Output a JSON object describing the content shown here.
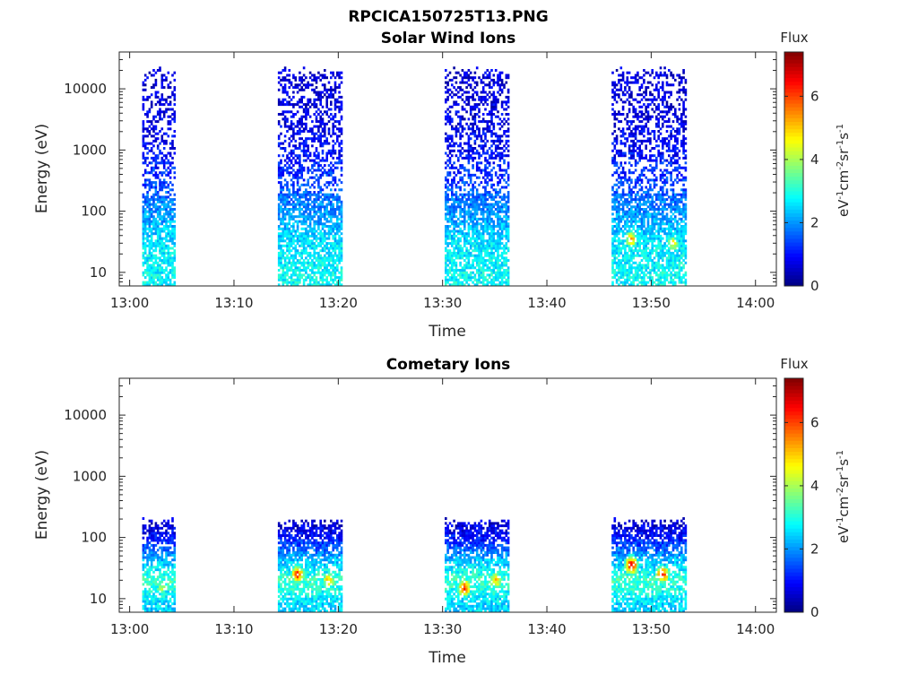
{
  "figure": {
    "title": "RPCICA150725T13.PNG"
  },
  "colormap": "jet",
  "chart_data": [
    {
      "type": "heatmap",
      "title": "Solar Wind Ions",
      "xlabel": "Time",
      "ylabel": "Energy (eV)",
      "x_ticks": [
        "13:00",
        "13:10",
        "13:20",
        "13:30",
        "13:40",
        "13:50",
        "14:00"
      ],
      "x_range": [
        "12:59",
        "14:02"
      ],
      "y_scale": "log",
      "y_ticks": [
        "10",
        "100",
        "1000",
        "10000"
      ],
      "y_range": [
        6,
        40000
      ],
      "colorbar": {
        "title": "Flux",
        "label": "eV-1cm-2sr-1s-1",
        "ticks": [
          "0",
          "2",
          "4",
          "6"
        ],
        "range": [
          0,
          7.4
        ]
      },
      "grid": false,
      "data_intervals": [
        {
          "start": "13:01",
          "end": "13:04"
        },
        {
          "start": "13:14",
          "end": "13:20"
        },
        {
          "start": "13:30",
          "end": "13:36"
        },
        {
          "start": "13:46",
          "end": "13:53"
        }
      ],
      "intensity_profile": [
        {
          "energy_eV": 10,
          "flux": 2.8
        },
        {
          "energy_eV": 30,
          "flux": 2.6
        },
        {
          "energy_eV": 100,
          "flux": 2.0
        },
        {
          "energy_eV": 300,
          "flux": 1.4
        },
        {
          "energy_eV": 1000,
          "flux": 0.9
        },
        {
          "energy_eV": 10000,
          "flux": 0.6
        }
      ],
      "hotspots": [
        {
          "time": "13:48",
          "energy_eV": 35,
          "flux": 5.0
        },
        {
          "time": "13:52",
          "energy_eV": 30,
          "flux": 4.5
        }
      ]
    },
    {
      "type": "heatmap",
      "title": "Cometary Ions",
      "xlabel": "Time",
      "ylabel": "Energy (eV)",
      "x_ticks": [
        "13:00",
        "13:10",
        "13:20",
        "13:30",
        "13:40",
        "13:50",
        "14:00"
      ],
      "x_range": [
        "12:59",
        "14:02"
      ],
      "y_scale": "log",
      "y_ticks": [
        "10",
        "100",
        "1000",
        "10000"
      ],
      "y_range": [
        6,
        40000
      ],
      "colorbar": {
        "title": "Flux",
        "label": "eV-1cm-2sr-1s-1",
        "ticks": [
          "0",
          "2",
          "4",
          "6"
        ],
        "range": [
          0,
          7.4
        ]
      },
      "grid": false,
      "data_intervals": [
        {
          "start": "13:01",
          "end": "13:04"
        },
        {
          "start": "13:14",
          "end": "13:20"
        },
        {
          "start": "13:30",
          "end": "13:36"
        },
        {
          "start": "13:46",
          "end": "13:53"
        }
      ],
      "intensity_profile": [
        {
          "energy_eV": 8,
          "flux": 2.5
        },
        {
          "energy_eV": 20,
          "flux": 3.2
        },
        {
          "energy_eV": 40,
          "flux": 2.4
        },
        {
          "energy_eV": 100,
          "flux": 1.0
        },
        {
          "energy_eV": 200,
          "flux": 0.5
        }
      ],
      "hotspots": [
        {
          "time": "13:03",
          "energy_eV": 15,
          "flux": 4.0
        },
        {
          "time": "13:16",
          "energy_eV": 25,
          "flux": 6.0
        },
        {
          "time": "13:19",
          "energy_eV": 20,
          "flux": 5.0
        },
        {
          "time": "13:32",
          "energy_eV": 15,
          "flux": 6.0
        },
        {
          "time": "13:35",
          "energy_eV": 20,
          "flux": 5.0
        },
        {
          "time": "13:48",
          "energy_eV": 35,
          "flux": 6.5
        },
        {
          "time": "13:51",
          "energy_eV": 25,
          "flux": 6.0
        }
      ]
    }
  ]
}
